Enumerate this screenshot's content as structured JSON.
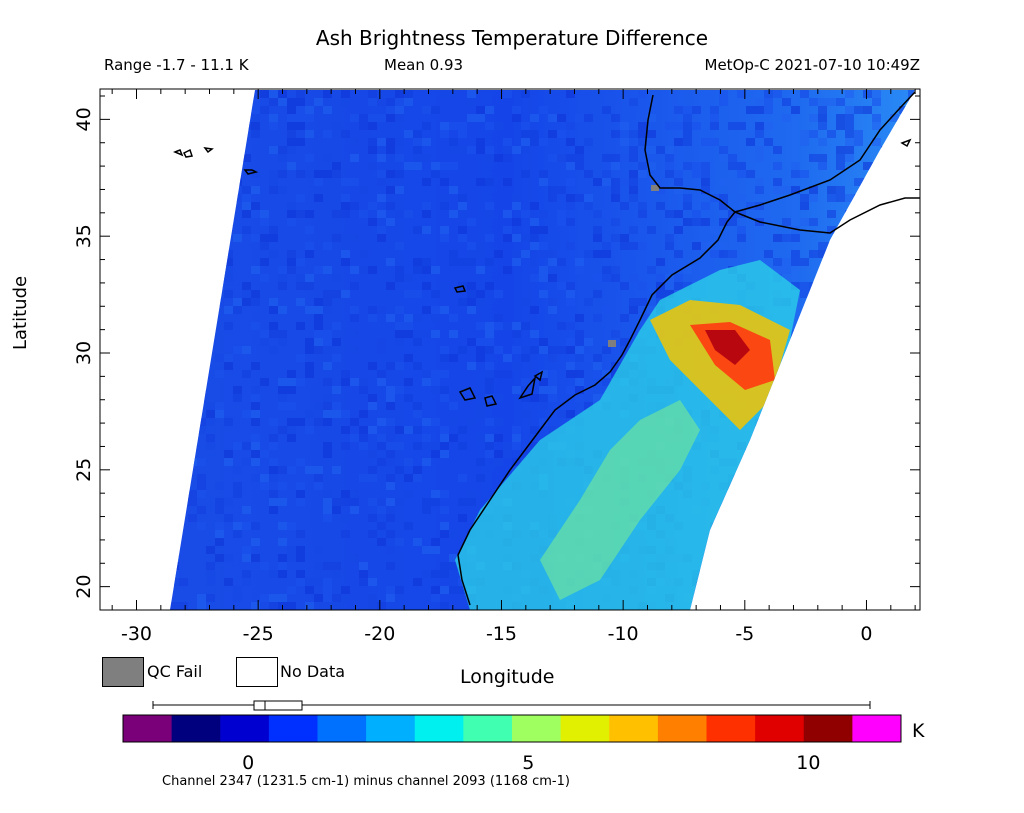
{
  "header": {
    "title": "Ash Brightness Temperature Difference",
    "range": "Range -1.7 - 11.1 K",
    "mean": "Mean 0.93",
    "satellite_time": "MetOp-C 2021-07-10 10:49Z"
  },
  "axes": {
    "ylabel": "Latitude",
    "xlabel": "Longitude",
    "x_ticks": [
      "-30",
      "-25",
      "-20",
      "-15",
      "-10",
      "-5",
      "0"
    ],
    "y_ticks": [
      "20",
      "25",
      "30",
      "35",
      "40"
    ]
  },
  "legend": {
    "qc_fail_label": "QC Fail",
    "no_data_label": "No Data",
    "qc_fail_color": "#7f7f7f",
    "no_data_color": "#ffffff"
  },
  "colorbar": {
    "ticks": [
      "0",
      "5",
      "10"
    ],
    "unit": "K",
    "footnote": "Channel 2347 (1231.5 cm-1) minus channel 2093 (1168 cm-1)",
    "colors": [
      "#7a007a",
      "#00007f",
      "#0000d0",
      "#0030ff",
      "#0070ff",
      "#00b0ff",
      "#00f0f0",
      "#40ffb0",
      "#a0ff60",
      "#e0f000",
      "#ffc000",
      "#ff8000",
      "#ff3000",
      "#e00000",
      "#900000",
      "#ff00ff"
    ]
  },
  "chart_data": {
    "type": "heatmap",
    "xlim": [
      -31.5,
      2.2
    ],
    "ylim": [
      19,
      41.3
    ],
    "x_ticks": [
      -30,
      -25,
      -20,
      -15,
      -10,
      -5,
      0
    ],
    "y_ticks": [
      20,
      25,
      30,
      35,
      40
    ],
    "value_range": [
      -1.7,
      11.1
    ],
    "mean": 0.93,
    "unit": "K",
    "colorbar_ticks": [
      0,
      5,
      10
    ],
    "qc_fail_points": [
      [
        -10.5,
        30.3
      ],
      [
        -8.8,
        37.0
      ]
    ]
  }
}
